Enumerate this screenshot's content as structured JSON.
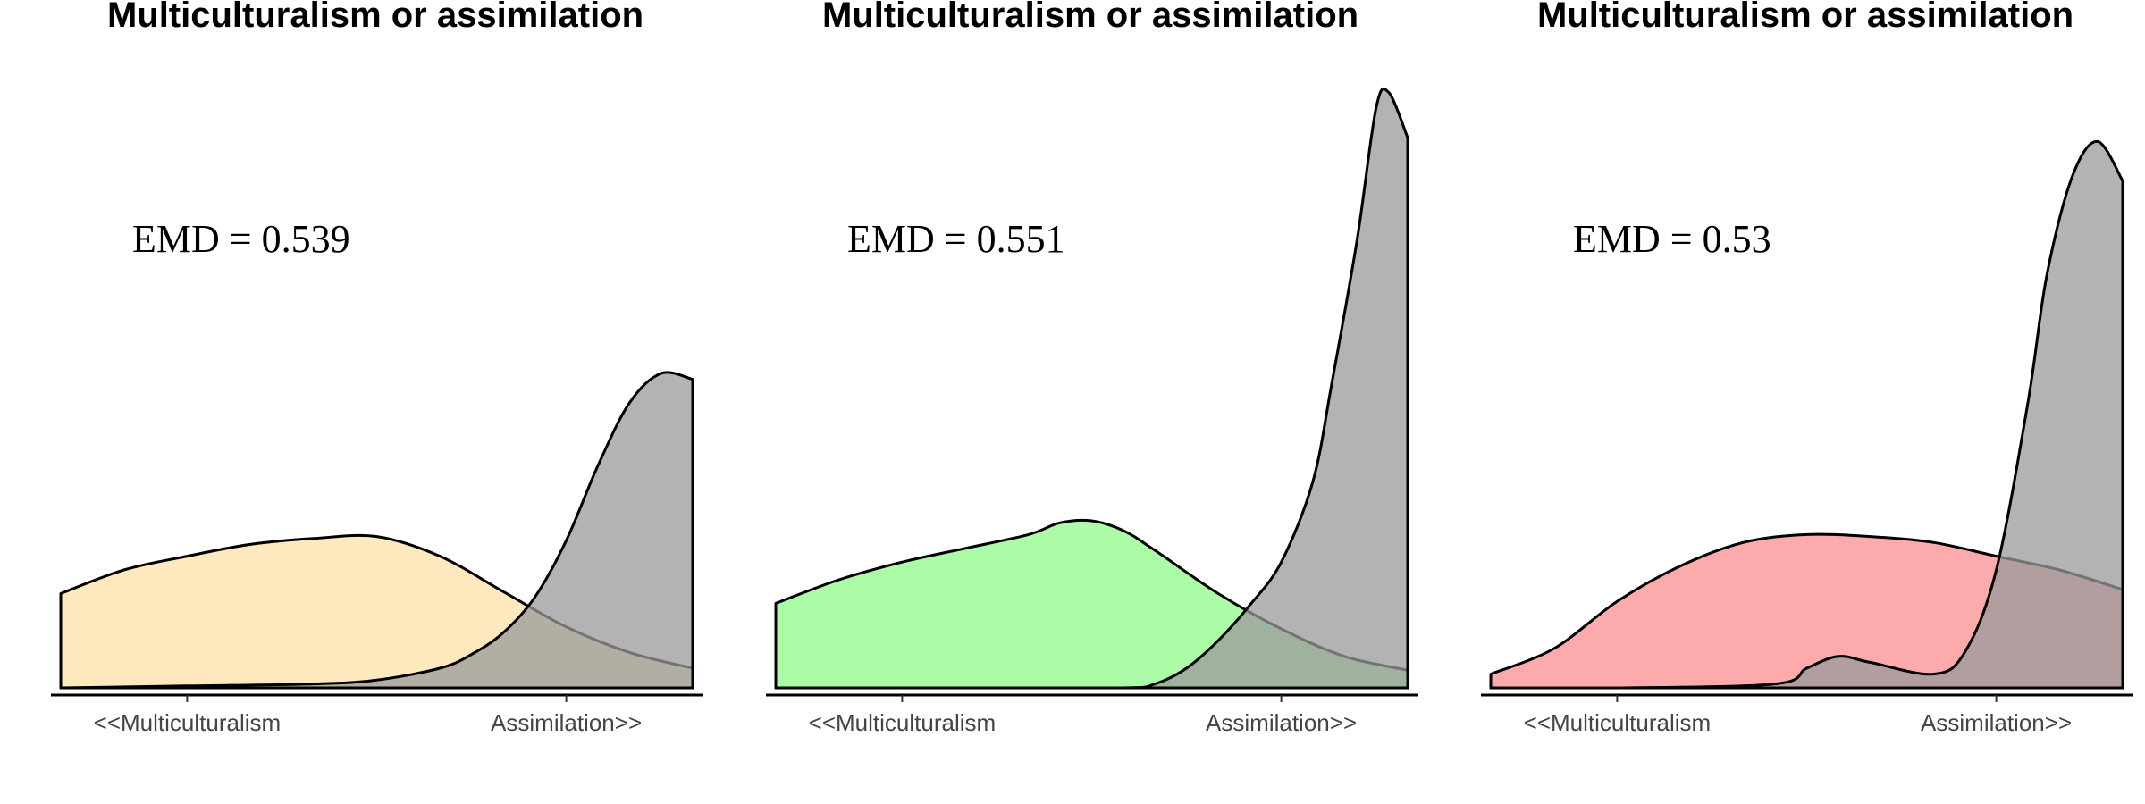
{
  "chart_data": [
    {
      "type": "area",
      "title": "Multiculturalism or assimilation",
      "annotation": "EMD = 0.539",
      "x_ticks": [
        {
          "value": 0.2,
          "label": "<<Multiculturalism"
        },
        {
          "value": 0.8,
          "label": "Assimilation>>"
        }
      ],
      "xlim": [
        0,
        1
      ],
      "series": [
        {
          "color": "#fde1a9",
          "x": [
            0,
            0.1,
            0.2,
            0.3,
            0.4,
            0.5,
            0.6,
            0.7,
            0.8,
            0.9,
            1.0
          ],
          "y": [
            0.48,
            0.6,
            0.67,
            0.73,
            0.76,
            0.77,
            0.67,
            0.49,
            0.31,
            0.18,
            0.1
          ]
        },
        {
          "color": "#999999",
          "x": [
            0,
            0.2,
            0.4,
            0.5,
            0.6,
            0.65,
            0.7,
            0.75,
            0.8,
            0.85,
            0.9,
            0.95,
            1.0
          ],
          "y": [
            0.0,
            0.01,
            0.02,
            0.04,
            0.1,
            0.17,
            0.28,
            0.46,
            0.75,
            1.13,
            1.45,
            1.6,
            1.57
          ]
        }
      ]
    },
    {
      "type": "area",
      "title": "Multiculturalism or assimilation",
      "annotation": "EMD = 0.551",
      "x_ticks": [
        {
          "value": 0.2,
          "label": "<<Multiculturalism"
        },
        {
          "value": 0.8,
          "label": "Assimilation>>"
        }
      ],
      "xlim": [
        0,
        1
      ],
      "series": [
        {
          "color": "#90f98a",
          "x": [
            0,
            0.1,
            0.2,
            0.3,
            0.4,
            0.45,
            0.5,
            0.55,
            0.6,
            0.7,
            0.8,
            0.9,
            1.0
          ],
          "y": [
            0.43,
            0.55,
            0.64,
            0.71,
            0.78,
            0.84,
            0.85,
            0.8,
            0.7,
            0.48,
            0.3,
            0.16,
            0.09
          ]
        },
        {
          "color": "#999999",
          "x": [
            0,
            0.3,
            0.55,
            0.6,
            0.65,
            0.7,
            0.75,
            0.8,
            0.85,
            0.88,
            0.92,
            0.95,
            0.97,
            1.0
          ],
          "y": [
            0.0,
            0.0,
            0.0,
            0.02,
            0.1,
            0.24,
            0.42,
            0.64,
            1.05,
            1.55,
            2.28,
            2.95,
            3.03,
            2.8
          ]
        }
      ]
    },
    {
      "type": "area",
      "title": "Multiculturalism or assimilation",
      "annotation": "EMD = 0.53",
      "x_ticks": [
        {
          "value": 0.2,
          "label": "<<Multiculturalism"
        },
        {
          "value": 0.8,
          "label": "Assimilation>>"
        }
      ],
      "xlim": [
        0,
        1
      ],
      "series": [
        {
          "color": "#fb8d8f",
          "x": [
            0,
            0.1,
            0.2,
            0.3,
            0.4,
            0.5,
            0.6,
            0.7,
            0.8,
            0.9,
            1.0
          ],
          "y": [
            0.07,
            0.2,
            0.44,
            0.62,
            0.74,
            0.78,
            0.77,
            0.74,
            0.67,
            0.6,
            0.5
          ]
        },
        {
          "color": "#999999",
          "x": [
            0,
            0.2,
            0.45,
            0.5,
            0.55,
            0.6,
            0.7,
            0.75,
            0.8,
            0.85,
            0.88,
            0.92,
            0.96,
            1.0
          ],
          "y": [
            0.0,
            0.0,
            0.02,
            0.1,
            0.16,
            0.13,
            0.07,
            0.18,
            0.6,
            1.45,
            2.1,
            2.6,
            2.78,
            2.58
          ]
        }
      ]
    }
  ]
}
